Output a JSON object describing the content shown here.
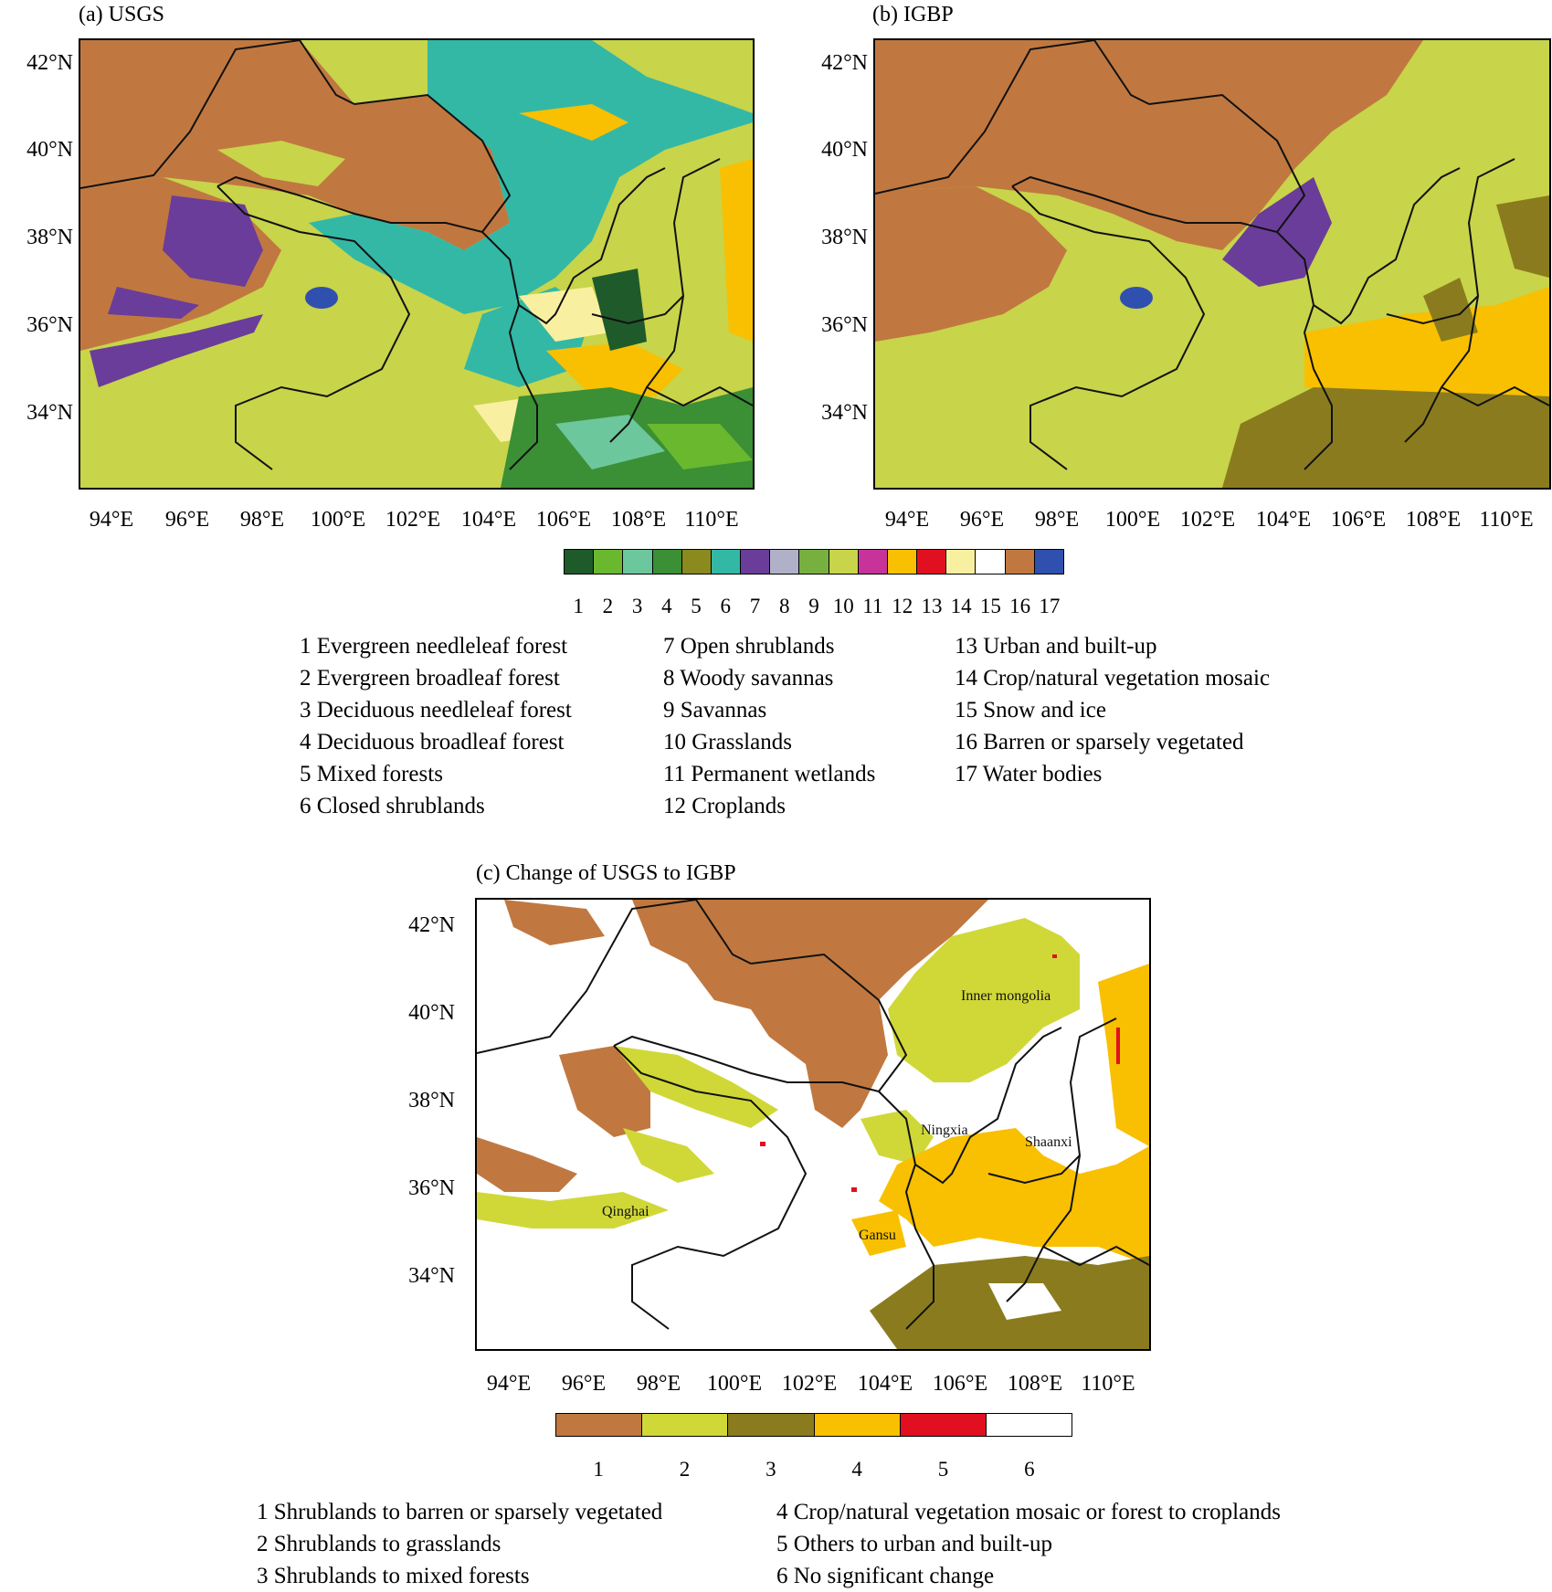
{
  "panels": {
    "a": {
      "title": "(a) USGS"
    },
    "b": {
      "title": "(b) IGBP"
    },
    "c": {
      "title": "(c) Change of USGS to IGBP"
    }
  },
  "axes": {
    "lat_labels": [
      "42°N",
      "40°N",
      "38°N",
      "36°N",
      "34°N"
    ],
    "lon_labels": [
      "94°E",
      "96°E",
      "98°E",
      "100°E",
      "102°E",
      "104°E",
      "106°E",
      "108°E",
      "110°E"
    ]
  },
  "region_labels": [
    "Inner mongolia",
    "Ningxia",
    "Shaanxi",
    "Qinghai",
    "Gansu"
  ],
  "landcover_colors": [
    "#1f5a2a",
    "#6ab82e",
    "#6dc79c",
    "#3b8f35",
    "#8a8a1e",
    "#33b8a6",
    "#6a3d9a",
    "#b0b0c8",
    "#78b040",
    "#c8d44a",
    "#c8339a",
    "#f8c000",
    "#e01020",
    "#f8f0a0",
    "#ffffff",
    "#c07840",
    "#3050b0"
  ],
  "landcover_legend": {
    "numbers": [
      "1",
      "2",
      "3",
      "4",
      "5",
      "6",
      "7",
      "8",
      "9",
      "10",
      "11",
      "12",
      "13",
      "14",
      "15",
      "16",
      "17"
    ],
    "columns": [
      [
        "1 Evergreen needleleaf forest",
        "2 Evergreen broadleaf forest",
        "3 Deciduous needleleaf forest",
        "4 Deciduous broadleaf forest",
        "5 Mixed forests",
        "6 Closed shrublands"
      ],
      [
        "7 Open shrublands",
        "8 Woody savannas",
        "9 Savannas",
        "10 Grasslands",
        "11 Permanent wetlands",
        "12 Croplands"
      ],
      [
        "13 Urban and built-up",
        "14 Crop/natural vegetation mosaic",
        "15 Snow and ice",
        "16 Barren or sparsely vegetated",
        "17 Water bodies"
      ]
    ]
  },
  "change_colors": [
    "#c07840",
    "#d0d838",
    "#8a7c1e",
    "#f8c000",
    "#e01020",
    "#ffffff"
  ],
  "change_legend": {
    "numbers": [
      "1",
      "2",
      "3",
      "4",
      "5",
      "6"
    ],
    "columns": [
      [
        "1 Shrublands to barren or sparsely vegetated",
        "2 Shrublands to grasslands",
        "3 Shrublands to mixed forests"
      ],
      [
        "4 Crop/natural vegetation mosaic or forest to croplands",
        "5 Others to urban and built-up",
        "6 No significant change"
      ]
    ]
  }
}
